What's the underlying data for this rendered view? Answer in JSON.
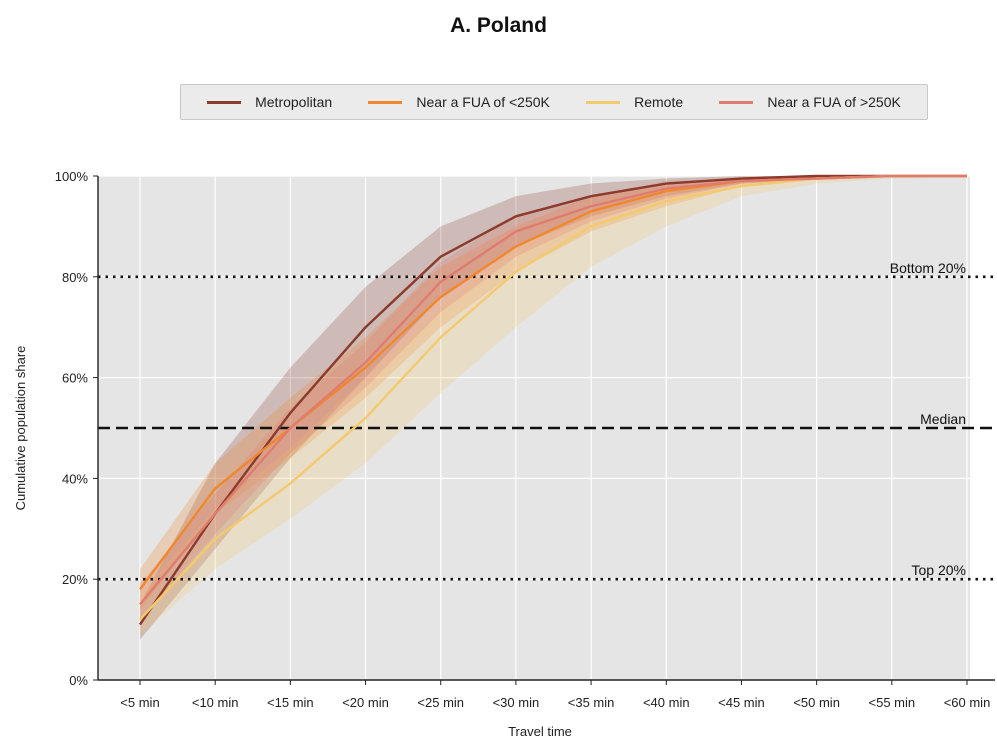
{
  "chart_data": {
    "type": "line",
    "title": "A. Poland",
    "xlabel": "Travel time",
    "ylabel": "Cumulative population share",
    "categories": [
      "<5 min",
      "<10 min",
      "<15 min",
      "<20 min",
      "<25 min",
      "<30 min",
      "<35 min",
      "<40 min",
      "<45 min",
      "<50 min",
      "<55 min",
      "<60 min"
    ],
    "ylim": [
      0,
      100
    ],
    "yticks": [
      0,
      20,
      40,
      60,
      80,
      100
    ],
    "ytick_labels": [
      "0%",
      "20%",
      "40%",
      "60%",
      "80%",
      "100%"
    ],
    "grid": true,
    "legend_position": "top",
    "series": [
      {
        "name": "Metropolitan",
        "color": "#8b3a2b",
        "values": [
          11,
          33,
          53,
          70,
          84,
          92,
          96,
          98.5,
          99.5,
          100,
          100,
          100
        ],
        "lower": [
          8,
          26,
          44,
          60,
          76,
          86,
          92,
          96,
          98.5,
          99.5,
          100,
          100
        ],
        "upper": [
          15,
          43,
          62,
          78,
          90,
          96,
          98.5,
          99.5,
          100,
          100,
          100,
          100
        ]
      },
      {
        "name": "Near a FUA of <250K",
        "color": "#f0872c",
        "values": [
          18,
          38,
          50,
          62,
          76,
          86,
          93,
          97,
          99,
          99.5,
          100,
          100
        ],
        "lower": [
          14,
          33,
          44,
          56,
          70,
          81,
          89,
          94,
          98,
          99.5,
          100,
          100
        ],
        "upper": [
          22,
          43,
          56,
          68,
          82,
          90,
          96,
          98.5,
          99.5,
          100,
          100,
          100
        ]
      },
      {
        "name": "Remote",
        "color": "#f5c96e",
        "values": [
          12,
          28,
          39,
          52,
          68,
          81,
          90,
          95,
          98,
          99.5,
          100,
          100
        ],
        "lower": [
          9,
          22,
          32,
          43,
          57,
          70,
          82,
          90,
          96,
          98.5,
          99.5,
          100
        ],
        "upper": [
          17,
          34,
          46,
          60,
          74,
          86,
          93,
          97.5,
          99.5,
          100,
          100,
          100
        ]
      },
      {
        "name": "Near a FUA of >250K",
        "color": "#e07c6e",
        "values": [
          15,
          33,
          50,
          63,
          79,
          89,
          94,
          97.5,
          99,
          99.5,
          100,
          100
        ],
        "lower": [
          12,
          29,
          45,
          58,
          73,
          84,
          91,
          95.5,
          98.5,
          99.5,
          100,
          100
        ],
        "upper": [
          19,
          37,
          54,
          67,
          83,
          92,
          96,
          99,
          99.5,
          100,
          100,
          100
        ]
      }
    ],
    "reference_lines": [
      {
        "label": "Bottom 20%",
        "y": 80,
        "style": "dotted"
      },
      {
        "label": "Median",
        "y": 50,
        "style": "dashed"
      },
      {
        "label": "Top 20%",
        "y": 20,
        "style": "dotted"
      }
    ]
  }
}
